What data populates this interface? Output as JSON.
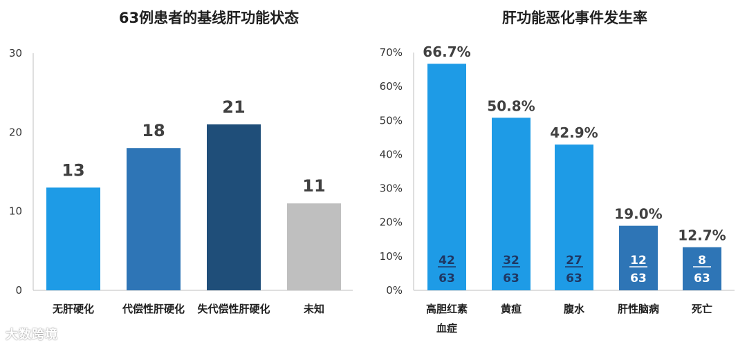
{
  "watermark": "大数跨境",
  "chart_data": [
    {
      "type": "bar",
      "title": "63例患者的基线肝功能状态",
      "categories": [
        "无肝硬化",
        "代偿性肝硬化",
        "失代偿性肝硬化",
        "未知"
      ],
      "values": [
        13,
        18,
        21,
        11
      ],
      "data_labels": [
        "13",
        "18",
        "21",
        "11"
      ],
      "colors": [
        "#1e9be6",
        "#2e75b6",
        "#1f4e79",
        "#bfbfbf"
      ],
      "ylim": [
        0,
        30
      ],
      "yticks": [
        "0",
        "10",
        "20",
        "30"
      ],
      "xlabel": "",
      "ylabel": "",
      "grid": false,
      "legend": "none"
    },
    {
      "type": "bar",
      "title": "肝功能恶化事件发生率",
      "categories": [
        [
          "高胆红素",
          "血症"
        ],
        [
          "黄疸"
        ],
        [
          "腹水"
        ],
        [
          "肝性脑病"
        ],
        [
          "死亡"
        ]
      ],
      "values": [
        66.7,
        50.8,
        42.9,
        19.0,
        12.7
      ],
      "data_labels": [
        "66.7%",
        "50.8%",
        "42.9%",
        "19.0%",
        "12.7%"
      ],
      "numerators": [
        "42",
        "32",
        "27",
        "12",
        "8"
      ],
      "denominators": [
        "63",
        "63",
        "63",
        "63",
        "63"
      ],
      "colors": [
        "#1e9be6",
        "#1e9be6",
        "#1e9be6",
        "#2e75b6",
        "#2e75b6"
      ],
      "fraction_colors": [
        "#1f3864",
        "#1f3864",
        "#1f3864",
        "#ffffff",
        "#ffffff"
      ],
      "ylim": [
        0,
        70
      ],
      "yticks": [
        "0%",
        "10%",
        "20%",
        "30%",
        "40%",
        "50%",
        "60%",
        "70%"
      ],
      "xlabel": "",
      "ylabel": "",
      "grid": false,
      "legend": "none"
    }
  ]
}
